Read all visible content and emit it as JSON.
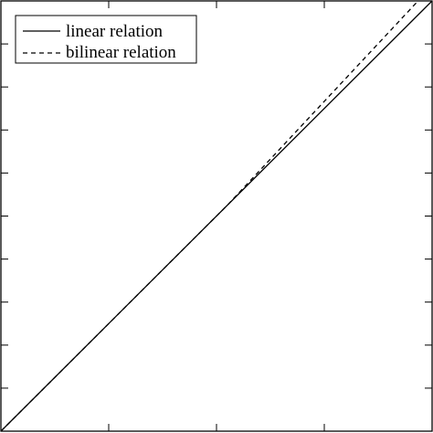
{
  "chart_data": {
    "type": "line",
    "title": "",
    "xlabel": "",
    "ylabel": "",
    "xlim": [
      0,
      4
    ],
    "ylim": [
      0,
      10
    ],
    "x_ticks": [
      0,
      1,
      2,
      3,
      4
    ],
    "y_ticks": [
      0,
      1,
      2,
      3,
      4,
      5,
      6,
      7,
      8,
      9,
      10
    ],
    "grid": false,
    "legend_position": "top-left",
    "series": [
      {
        "name": "linear relation",
        "style": "solid",
        "color": "#000000",
        "x": [
          0,
          4
        ],
        "y": [
          0,
          10
        ]
      },
      {
        "name": "bilinear relation",
        "style": "dashed",
        "color": "#000000",
        "x": [
          0,
          2.1,
          3.87
        ],
        "y": [
          0,
          5.25,
          10
        ]
      }
    ]
  }
}
